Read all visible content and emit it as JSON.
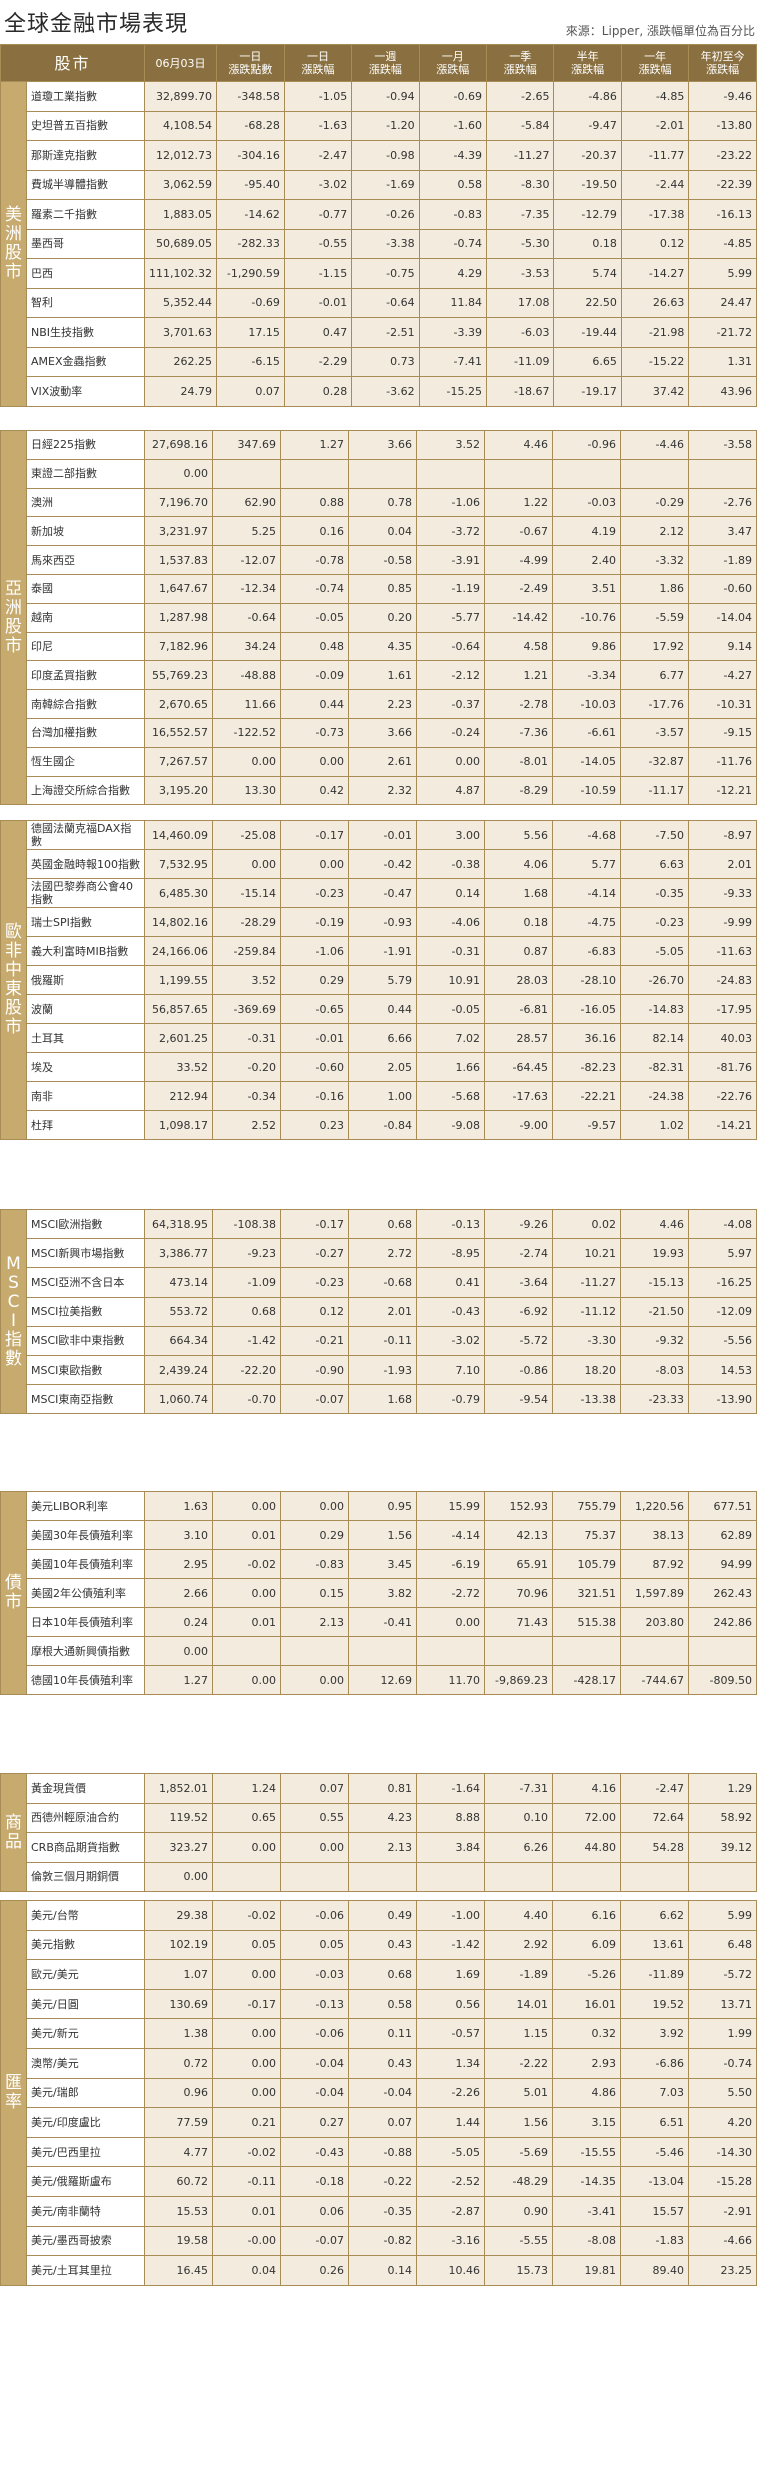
{
  "title": "全球金融市場表現",
  "source": "來源：Lipper, 漲跌幅單位為百分比",
  "headers": [
    "股市",
    "06月03日",
    "一日\n漲跌點數",
    "一日\n漲跌幅",
    "一週\n漲跌幅",
    "一月\n漲跌幅",
    "一季\n漲跌幅",
    "半年\n漲跌幅",
    "一年\n漲跌幅",
    "年初至今\n漲跌幅"
  ],
  "sections": [
    {
      "name": "美洲股市",
      "rows": [
        [
          "道瓊工業指數",
          "32,899.70",
          "-348.58",
          "-1.05",
          "-0.94",
          "-0.69",
          "-2.65",
          "-4.86",
          "-4.85",
          "-9.46"
        ],
        [
          "史坦普五百指數",
          "4,108.54",
          "-68.28",
          "-1.63",
          "-1.20",
          "-1.60",
          "-5.84",
          "-9.47",
          "-2.01",
          "-13.80"
        ],
        [
          "那斯達克指數",
          "12,012.73",
          "-304.16",
          "-2.47",
          "-0.98",
          "-4.39",
          "-11.27",
          "-20.37",
          "-11.77",
          "-23.22"
        ],
        [
          "費城半導體指數",
          "3,062.59",
          "-95.40",
          "-3.02",
          "-1.69",
          "0.58",
          "-8.30",
          "-19.50",
          "-2.44",
          "-22.39"
        ],
        [
          "羅素二千指數",
          "1,883.05",
          "-14.62",
          "-0.77",
          "-0.26",
          "-0.83",
          "-7.35",
          "-12.79",
          "-17.38",
          "-16.13"
        ],
        [
          "墨西哥",
          "50,689.05",
          "-282.33",
          "-0.55",
          "-3.38",
          "-0.74",
          "-5.30",
          "0.18",
          "0.12",
          "-4.85"
        ],
        [
          "巴西",
          "111,102.32",
          "-1,290.59",
          "-1.15",
          "-0.75",
          "4.29",
          "-3.53",
          "5.74",
          "-14.27",
          "5.99"
        ],
        [
          "智利",
          "5,352.44",
          "-0.69",
          "-0.01",
          "-0.64",
          "11.84",
          "17.08",
          "22.50",
          "26.63",
          "24.47"
        ],
        [
          "NBI生技指數",
          "3,701.63",
          "17.15",
          "0.47",
          "-2.51",
          "-3.39",
          "-6.03",
          "-19.44",
          "-21.98",
          "-21.72"
        ],
        [
          "AMEX金蟲指數",
          "262.25",
          "-6.15",
          "-2.29",
          "0.73",
          "-7.41",
          "-11.09",
          "6.65",
          "-15.22",
          "1.31"
        ],
        [
          "VIX波動率",
          "24.79",
          "0.07",
          "0.28",
          "-3.62",
          "-15.25",
          "-18.67",
          "-19.17",
          "37.42",
          "43.96"
        ]
      ]
    },
    {
      "name": "亞洲股市",
      "rows": [
        [
          "日經225指數",
          "27,698.16",
          "347.69",
          "1.27",
          "3.66",
          "3.52",
          "4.46",
          "-0.96",
          "-4.46",
          "-3.58"
        ],
        [
          "東證二部指數",
          "0.00",
          "",
          "",
          "",
          "",
          "",
          "",
          "",
          ""
        ],
        [
          "澳洲",
          "7,196.70",
          "62.90",
          "0.88",
          "0.78",
          "-1.06",
          "1.22",
          "-0.03",
          "-0.29",
          "-2.76"
        ],
        [
          "新加坡",
          "3,231.97",
          "5.25",
          "0.16",
          "0.04",
          "-3.72",
          "-0.67",
          "4.19",
          "2.12",
          "3.47"
        ],
        [
          "馬來西亞",
          "1,537.83",
          "-12.07",
          "-0.78",
          "-0.58",
          "-3.91",
          "-4.99",
          "2.40",
          "-3.32",
          "-1.89"
        ],
        [
          "泰國",
          "1,647.67",
          "-12.34",
          "-0.74",
          "0.85",
          "-1.19",
          "-2.49",
          "3.51",
          "1.86",
          "-0.60"
        ],
        [
          "越南",
          "1,287.98",
          "-0.64",
          "-0.05",
          "0.20",
          "-5.77",
          "-14.42",
          "-10.76",
          "-5.59",
          "-14.04"
        ],
        [
          "印尼",
          "7,182.96",
          "34.24",
          "0.48",
          "4.35",
          "-0.64",
          "4.58",
          "9.86",
          "17.92",
          "9.14"
        ],
        [
          "印度孟買指數",
          "55,769.23",
          "-48.88",
          "-0.09",
          "1.61",
          "-2.12",
          "1.21",
          "-3.34",
          "6.77",
          "-4.27"
        ],
        [
          "南韓綜合指數",
          "2,670.65",
          "11.66",
          "0.44",
          "2.23",
          "-0.37",
          "-2.78",
          "-10.03",
          "-17.76",
          "-10.31"
        ],
        [
          "台灣加權指數",
          "16,552.57",
          "-122.52",
          "-0.73",
          "3.66",
          "-0.24",
          "-7.36",
          "-6.61",
          "-3.57",
          "-9.15"
        ],
        [
          "恆生國企",
          "7,267.57",
          "0.00",
          "0.00",
          "2.61",
          "0.00",
          "-8.01",
          "-14.05",
          "-32.87",
          "-11.76"
        ],
        [
          "上海證交所綜合指數",
          "3,195.20",
          "13.30",
          "0.42",
          "2.32",
          "4.87",
          "-8.29",
          "-10.59",
          "-11.17",
          "-12.21"
        ]
      ]
    },
    {
      "name": "歐非中東股市",
      "rows": [
        [
          "德國法蘭克福DAX指數",
          "14,460.09",
          "-25.08",
          "-0.17",
          "-0.01",
          "3.00",
          "5.56",
          "-4.68",
          "-7.50",
          "-8.97"
        ],
        [
          "英國金融時報100指數",
          "7,532.95",
          "0.00",
          "0.00",
          "-0.42",
          "-0.38",
          "4.06",
          "5.77",
          "6.63",
          "2.01"
        ],
        [
          "法國巴黎券商公會40指數",
          "6,485.30",
          "-15.14",
          "-0.23",
          "-0.47",
          "0.14",
          "1.68",
          "-4.14",
          "-0.35",
          "-9.33"
        ],
        [
          "瑞士SPI指數",
          "14,802.16",
          "-28.29",
          "-0.19",
          "-0.93",
          "-4.06",
          "0.18",
          "-4.75",
          "-0.23",
          "-9.99"
        ],
        [
          "義大利富時MIB指數",
          "24,166.06",
          "-259.84",
          "-1.06",
          "-1.91",
          "-0.31",
          "0.87",
          "-6.83",
          "-5.05",
          "-11.63"
        ],
        [
          "俄羅斯",
          "1,199.55",
          "3.52",
          "0.29",
          "5.79",
          "10.91",
          "28.03",
          "-28.10",
          "-26.70",
          "-24.83"
        ],
        [
          "波蘭",
          "56,857.65",
          "-369.69",
          "-0.65",
          "0.44",
          "-0.05",
          "-6.81",
          "-16.05",
          "-14.83",
          "-17.95"
        ],
        [
          "土耳其",
          "2,601.25",
          "-0.31",
          "-0.01",
          "6.66",
          "7.02",
          "28.57",
          "36.16",
          "82.14",
          "40.03"
        ],
        [
          "埃及",
          "33.52",
          "-0.20",
          "-0.60",
          "2.05",
          "1.66",
          "-64.45",
          "-82.23",
          "-82.31",
          "-81.76"
        ],
        [
          "南非",
          "212.94",
          "-0.34",
          "-0.16",
          "1.00",
          "-5.68",
          "-17.63",
          "-22.21",
          "-24.38",
          "-22.76"
        ],
        [
          "杜拜",
          "1,098.17",
          "2.52",
          "0.23",
          "-0.84",
          "-9.08",
          "-9.00",
          "-9.57",
          "1.02",
          "-14.21"
        ]
      ]
    },
    {
      "name": "MSCI指數",
      "rows": [
        [
          "MSCI歐洲指數",
          "64,318.95",
          "-108.38",
          "-0.17",
          "0.68",
          "-0.13",
          "-9.26",
          "0.02",
          "4.46",
          "-4.08"
        ],
        [
          "MSCI新興市場指數",
          "3,386.77",
          "-9.23",
          "-0.27",
          "2.72",
          "-8.95",
          "-2.74",
          "10.21",
          "19.93",
          "5.97"
        ],
        [
          "MSCI亞洲不含日本",
          "473.14",
          "-1.09",
          "-0.23",
          "-0.68",
          "0.41",
          "-3.64",
          "-11.27",
          "-15.13",
          "-16.25"
        ],
        [
          "MSCI拉美指數",
          "553.72",
          "0.68",
          "0.12",
          "2.01",
          "-0.43",
          "-6.92",
          "-11.12",
          "-21.50",
          "-12.09"
        ],
        [
          "MSCI歐非中東指數",
          "664.34",
          "-1.42",
          "-0.21",
          "-0.11",
          "-3.02",
          "-5.72",
          "-3.30",
          "-9.32",
          "-5.56"
        ],
        [
          "MSCI東歐指數",
          "2,439.24",
          "-22.20",
          "-0.90",
          "-1.93",
          "7.10",
          "-0.86",
          "18.20",
          "-8.03",
          "14.53"
        ],
        [
          "MSCI東南亞指數",
          "1,060.74",
          "-0.70",
          "-0.07",
          "1.68",
          "-0.79",
          "-9.54",
          "-13.38",
          "-23.33",
          "-13.90"
        ]
      ]
    },
    {
      "name": "債市",
      "rows": [
        [
          "美元LIBOR利率",
          "1.63",
          "0.00",
          "0.00",
          "0.95",
          "15.99",
          "152.93",
          "755.79",
          "1,220.56",
          "677.51"
        ],
        [
          "美國30年長債殖利率",
          "3.10",
          "0.01",
          "0.29",
          "1.56",
          "-4.14",
          "42.13",
          "75.37",
          "38.13",
          "62.89"
        ],
        [
          "美國10年長債殖利率",
          "2.95",
          "-0.02",
          "-0.83",
          "3.45",
          "-6.19",
          "65.91",
          "105.79",
          "87.92",
          "94.99"
        ],
        [
          "美國2年公債殖利率",
          "2.66",
          "0.00",
          "0.15",
          "3.82",
          "-2.72",
          "70.96",
          "321.51",
          "1,597.89",
          "262.43"
        ],
        [
          "日本10年長債殖利率",
          "0.24",
          "0.01",
          "2.13",
          "-0.41",
          "0.00",
          "71.43",
          "515.38",
          "203.80",
          "242.86"
        ],
        [
          "摩根大通新興債指數",
          "0.00",
          "",
          "",
          "",
          "",
          "",
          "",
          "",
          ""
        ],
        [
          "德國10年長債殖利率",
          "1.27",
          "0.00",
          "0.00",
          "12.69",
          "11.70",
          "-9,869.23",
          "-428.17",
          "-744.67",
          "-809.50"
        ]
      ]
    },
    {
      "name": "商品",
      "rows": [
        [
          "黃金現貨價",
          "1,852.01",
          "1.24",
          "0.07",
          "0.81",
          "-1.64",
          "-7.31",
          "4.16",
          "-2.47",
          "1.29"
        ],
        [
          "西德州輕原油合約",
          "119.52",
          "0.65",
          "0.55",
          "4.23",
          "8.88",
          "0.10",
          "72.00",
          "72.64",
          "58.92"
        ],
        [
          "CRB商品期貨指數",
          "323.27",
          "0.00",
          "0.00",
          "2.13",
          "3.84",
          "6.26",
          "44.80",
          "54.28",
          "39.12"
        ],
        [
          "倫敦三個月期銅價",
          "0.00",
          "",
          "",
          "",
          "",
          "",
          "",
          "",
          ""
        ]
      ]
    },
    {
      "name": "匯率",
      "rows": [
        [
          "美元/台幣",
          "29.38",
          "-0.02",
          "-0.06",
          "0.49",
          "-1.00",
          "4.40",
          "6.16",
          "6.62",
          "5.99"
        ],
        [
          "美元指數",
          "102.19",
          "0.05",
          "0.05",
          "0.43",
          "-1.42",
          "2.92",
          "6.09",
          "13.61",
          "6.48"
        ],
        [
          "歐元/美元",
          "1.07",
          "0.00",
          "-0.03",
          "0.68",
          "1.69",
          "-1.89",
          "-5.26",
          "-11.89",
          "-5.72"
        ],
        [
          "美元/日圓",
          "130.69",
          "-0.17",
          "-0.13",
          "0.58",
          "0.56",
          "14.01",
          "16.01",
          "19.52",
          "13.71"
        ],
        [
          "美元/新元",
          "1.38",
          "0.00",
          "-0.06",
          "0.11",
          "-0.57",
          "1.15",
          "0.32",
          "3.92",
          "1.99"
        ],
        [
          "澳幣/美元",
          "0.72",
          "0.00",
          "-0.04",
          "0.43",
          "1.34",
          "-2.22",
          "2.93",
          "-6.86",
          "-0.74"
        ],
        [
          "美元/瑞郎",
          "0.96",
          "0.00",
          "-0.04",
          "-0.04",
          "-2.26",
          "5.01",
          "4.86",
          "7.03",
          "5.50"
        ],
        [
          "美元/印度盧比",
          "77.59",
          "0.21",
          "0.27",
          "0.07",
          "1.44",
          "1.56",
          "3.15",
          "6.51",
          "4.20"
        ],
        [
          "美元/巴西里拉",
          "4.77",
          "-0.02",
          "-0.43",
          "-0.88",
          "-5.05",
          "-5.69",
          "-15.55",
          "-5.46",
          "-14.30"
        ],
        [
          "美元/俄羅斯盧布",
          "60.72",
          "-0.11",
          "-0.18",
          "-0.22",
          "-2.52",
          "-48.29",
          "-14.35",
          "-13.04",
          "-15.28"
        ],
        [
          "美元/南非蘭特",
          "15.53",
          "0.01",
          "0.06",
          "-0.35",
          "-2.87",
          "0.90",
          "-3.41",
          "15.57",
          "-2.91"
        ],
        [
          "美元/墨西哥披索",
          "19.58",
          "-0.00",
          "-0.07",
          "-0.82",
          "-3.16",
          "-5.55",
          "-8.08",
          "-1.83",
          "-4.66"
        ],
        [
          "美元/土耳其里拉",
          "16.45",
          "0.04",
          "0.26",
          "0.14",
          "10.46",
          "15.73",
          "19.81",
          "89.40",
          "23.25"
        ]
      ]
    }
  ]
}
